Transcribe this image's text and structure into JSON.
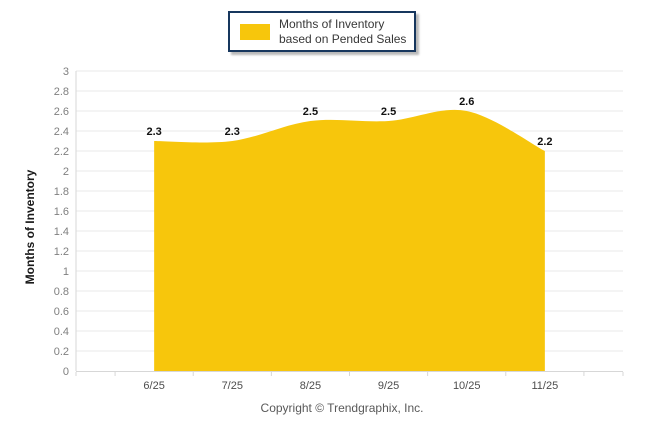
{
  "legend": {
    "label": "Months of Inventory based on Pended Sales",
    "swatch_color": "#f7c60c"
  },
  "footer": {
    "copyright": "Copyright © Trendgraphix, Inc."
  },
  "chart_data": {
    "type": "area",
    "title": "",
    "xlabel": "",
    "ylabel": "Months of Inventory",
    "categories": [
      "6/25",
      "7/25",
      "8/25",
      "9/25",
      "10/25",
      "11/25"
    ],
    "series": [
      {
        "name": "Months of Inventory based on Pended Sales",
        "values": [
          2.3,
          2.3,
          2.5,
          2.5,
          2.6,
          2.2
        ]
      }
    ],
    "ylim": [
      0,
      3
    ],
    "ytick_step": 0.2,
    "grid": true,
    "legend_position": "top-center",
    "colors": {
      "area_fill": "#f7c60c",
      "gridline": "#e9e9e9",
      "axis_line": "#d7d7d7",
      "y_tick_label": "#7f7f7f",
      "x_tick_label": "#4d4d4d",
      "data_label": "#111111",
      "legend_border": "#17375e"
    }
  }
}
